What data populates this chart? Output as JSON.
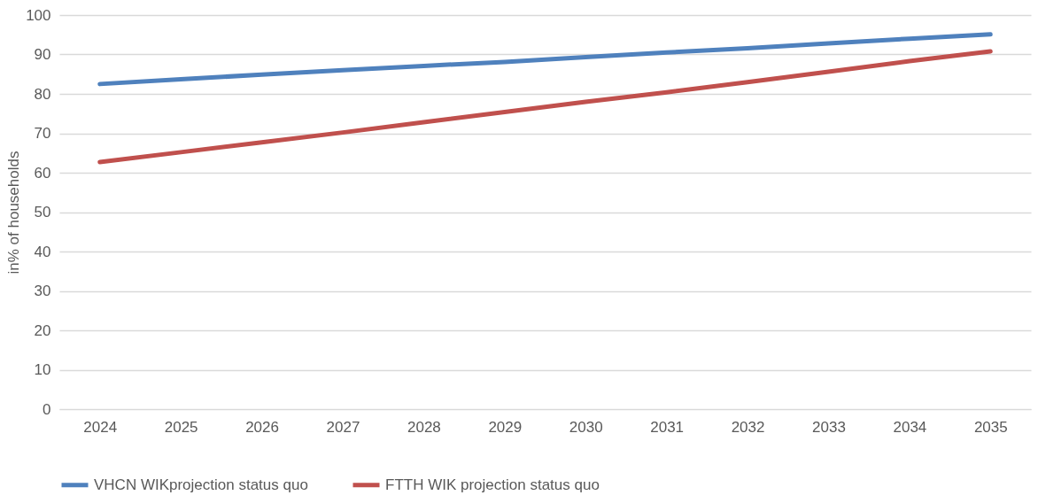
{
  "chart_data": {
    "type": "line",
    "ylabel": "in% of households",
    "categories": [
      "2024",
      "2025",
      "2026",
      "2027",
      "2028",
      "2029",
      "2030",
      "2031",
      "2032",
      "2033",
      "2034",
      "2035"
    ],
    "series": [
      {
        "name": "VHCN WIKprojection status quo",
        "color": "#4f81bd",
        "values": [
          82.5,
          83.7,
          84.9,
          86.0,
          87.1,
          88.1,
          89.3,
          90.5,
          91.6,
          92.8,
          94.0,
          95.1
        ]
      },
      {
        "name": "FTTH WIK projection status quo",
        "color": "#c0504d",
        "values": [
          62.7,
          65.2,
          67.7,
          70.2,
          72.8,
          75.4,
          78.0,
          80.4,
          83.0,
          85.6,
          88.3,
          90.8
        ]
      }
    ],
    "ylim": [
      0,
      100
    ],
    "yticks": [
      0,
      10,
      20,
      30,
      40,
      50,
      60,
      70,
      80,
      90,
      100
    ],
    "grid": "y",
    "legend": "bottom",
    "marker": "none",
    "line_style": "solid"
  }
}
